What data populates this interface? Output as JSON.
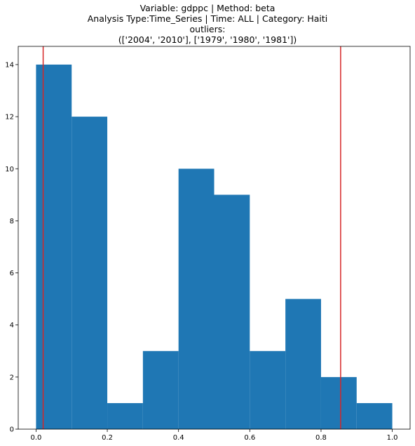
{
  "title_lines": [
    "Variable: gdppc | Method: beta",
    "Analysis Type:Time_Series | Time: ALL | Category: Haiti",
    "outliers:",
    "(['2004', '2010'], ['1979', '1980', '1981'])"
  ],
  "chart_data": {
    "type": "bar",
    "subtype": "histogram",
    "bin_edges": [
      0.0,
      0.1,
      0.2,
      0.3,
      0.4,
      0.5,
      0.6,
      0.7,
      0.8,
      0.9,
      1.0
    ],
    "counts": [
      14,
      12,
      1,
      3,
      10,
      9,
      3,
      5,
      2,
      1
    ],
    "xlim": [
      -0.05,
      1.05
    ],
    "ylim": [
      0,
      14.7
    ],
    "xticks": [
      0.0,
      0.2,
      0.4,
      0.6,
      0.8,
      1.0
    ],
    "xtick_labels": [
      "0.0",
      "0.2",
      "0.4",
      "0.6",
      "0.8",
      "1.0"
    ],
    "yticks": [
      0,
      2,
      4,
      6,
      8,
      10,
      12,
      14
    ],
    "ytick_labels": [
      "0",
      "2",
      "4",
      "6",
      "8",
      "10",
      "12",
      "14"
    ],
    "vlines": [
      0.02,
      0.855
    ],
    "bar_color": "#1f77b4",
    "vline_color": "#d62728"
  }
}
